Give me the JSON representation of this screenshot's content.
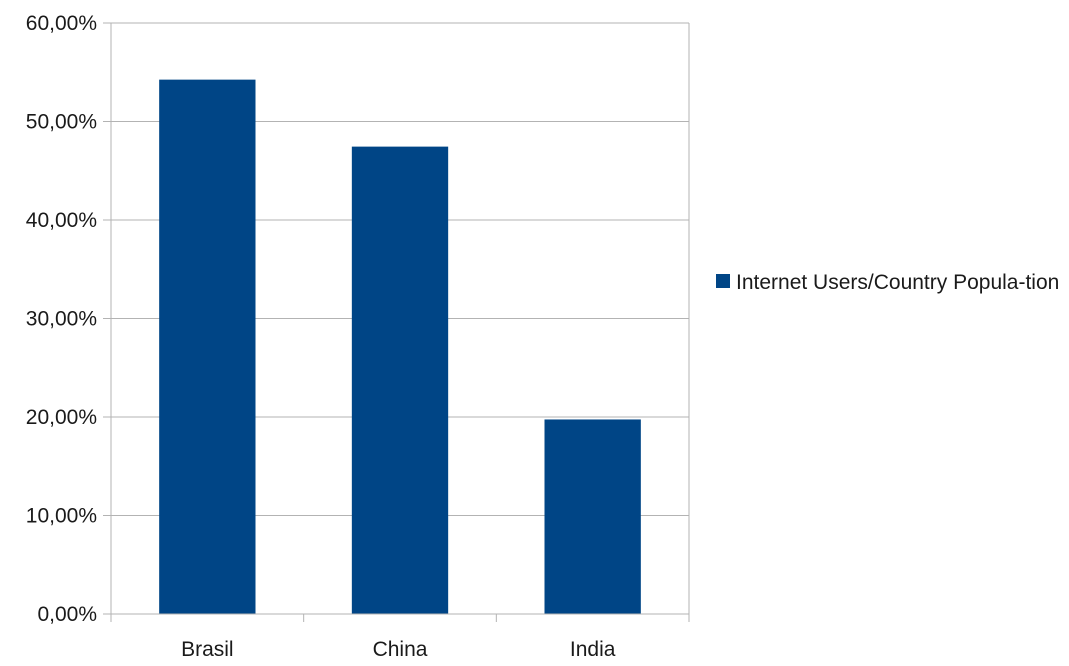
{
  "chart_data": {
    "type": "bar",
    "title": "",
    "xlabel": "",
    "ylabel": "",
    "categories": [
      "Brasil",
      "China",
      "India"
    ],
    "series": [
      {
        "name": "Internet Users/Country Popula-­tion",
        "values": [
          0.5425,
          0.4745,
          0.1975
        ]
      }
    ],
    "ylim": [
      0,
      0.6
    ],
    "yticks": [
      0,
      0.1,
      0.2,
      0.3,
      0.4,
      0.5,
      0.6
    ],
    "ytick_labels": [
      "0,00%",
      "10,00%",
      "20,00%",
      "30,00%",
      "40,00%",
      "50,00%",
      "60,00%"
    ],
    "grid": true,
    "legend_position": "right",
    "colors": {
      "bar": "#004586",
      "grid": "#b3b3b3",
      "axis": "#b3b3b3"
    }
  },
  "legend": {
    "label": "Internet Users/Country Popula-­tion"
  }
}
